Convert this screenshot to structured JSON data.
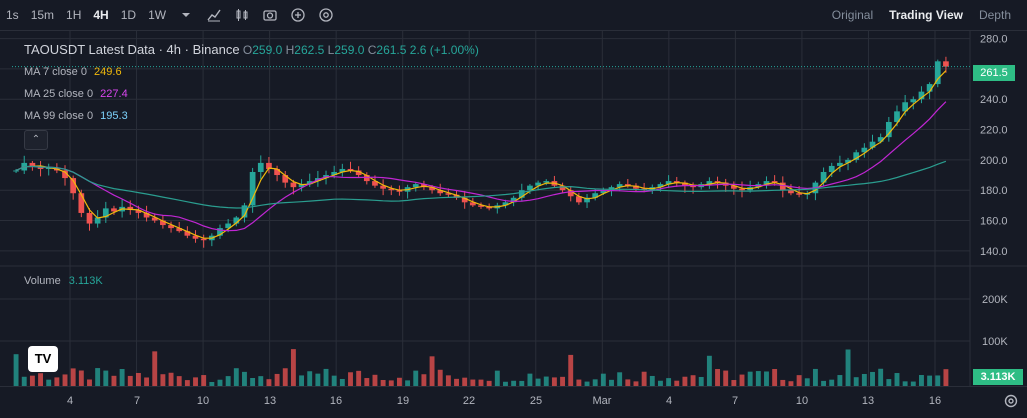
{
  "toolbar": {
    "timeframes": [
      "1s",
      "15m",
      "1H",
      "4H",
      "1D",
      "1W"
    ],
    "active_timeframe": "4H",
    "dropdown_icon": "chevron-down-icon",
    "tool_icons": [
      "indicator-icon",
      "candle-style-icon",
      "camera-icon",
      "add-icon",
      "settings-icon"
    ],
    "views": [
      "Original",
      "Trading View",
      "Depth"
    ],
    "active_view": "Trading View"
  },
  "legend": {
    "symbol": "TAOUSDT Latest Data · 4h · Binance",
    "o_label": "O",
    "o_value": "259.0",
    "h_label": "H",
    "h_value": "262.5",
    "l_label": "L",
    "l_value": "259.0",
    "c_label": "C",
    "c_value": "261.5",
    "change": "2.6 (+1.00%)",
    "ma7_label": "MA 7 close 0",
    "ma7_value": "249.6",
    "ma25_label": "MA 25 close 0",
    "ma25_value": "227.4",
    "ma99_label": "MA 99 close 0",
    "ma99_value": "195.3",
    "volume_label": "Volume",
    "volume_value": "3.113K"
  },
  "price_axis": {
    "ticks": [
      "280.0",
      "260.0",
      "240.0",
      "220.0",
      "200.0",
      "180.0",
      "160.0",
      "140.0"
    ],
    "current_price": "261.5"
  },
  "volume_axis": {
    "ticks": [
      "200K",
      "100K"
    ],
    "current_volume": "3.113K"
  },
  "time_axis": {
    "ticks": [
      "4",
      "7",
      "10",
      "13",
      "16",
      "19",
      "22",
      "25",
      "Mar",
      "4",
      "7",
      "10",
      "13",
      "16"
    ]
  },
  "colors": {
    "up": "#26a69a",
    "down": "#ef5350",
    "ma7": "#f0b90b",
    "ma25": "#c026d3",
    "ma99": "#2a9d8f",
    "background": "#161a25",
    "grid": "#2a2e39"
  },
  "chart_data": {
    "type": "candlestick",
    "title": "TAOUSDT Latest Data · 4h · Binance",
    "interval": "4h",
    "ylim": [
      130,
      285
    ],
    "yticks": [
      140,
      160,
      180,
      200,
      220,
      240,
      260,
      280
    ],
    "x_ticks": [
      "4",
      "7",
      "10",
      "13",
      "16",
      "19",
      "22",
      "25",
      "Mar",
      "4",
      "7",
      "10",
      "13",
      "16"
    ],
    "close_trend": [
      193,
      198,
      196,
      194,
      195,
      193,
      188,
      178,
      165,
      158,
      162,
      168,
      166,
      169,
      167,
      165,
      162,
      160,
      157,
      155,
      153,
      150,
      148,
      147,
      150,
      155,
      158,
      162,
      170,
      192,
      198,
      194,
      190,
      185,
      182,
      184,
      186,
      188,
      190,
      192,
      194,
      193,
      190,
      186,
      183,
      181,
      180,
      179,
      182,
      184,
      182,
      180,
      178,
      177,
      175,
      172,
      170,
      169,
      168,
      170,
      172,
      175,
      180,
      183,
      185,
      186,
      183,
      180,
      176,
      172,
      175,
      178,
      180,
      182,
      184,
      183,
      181,
      180,
      182,
      184,
      186,
      185,
      183,
      182,
      184,
      186,
      185,
      183,
      181,
      180,
      182,
      184,
      186,
      185,
      180,
      178,
      177,
      178,
      185,
      192,
      196,
      198,
      200,
      205,
      208,
      212,
      215,
      225,
      232,
      238,
      240,
      245,
      250,
      265,
      261.5
    ],
    "ma7_last": 249.6,
    "ma25_last": 227.4,
    "ma99_last": 195.3,
    "volume_max": 300000,
    "volume_last": 3113
  }
}
